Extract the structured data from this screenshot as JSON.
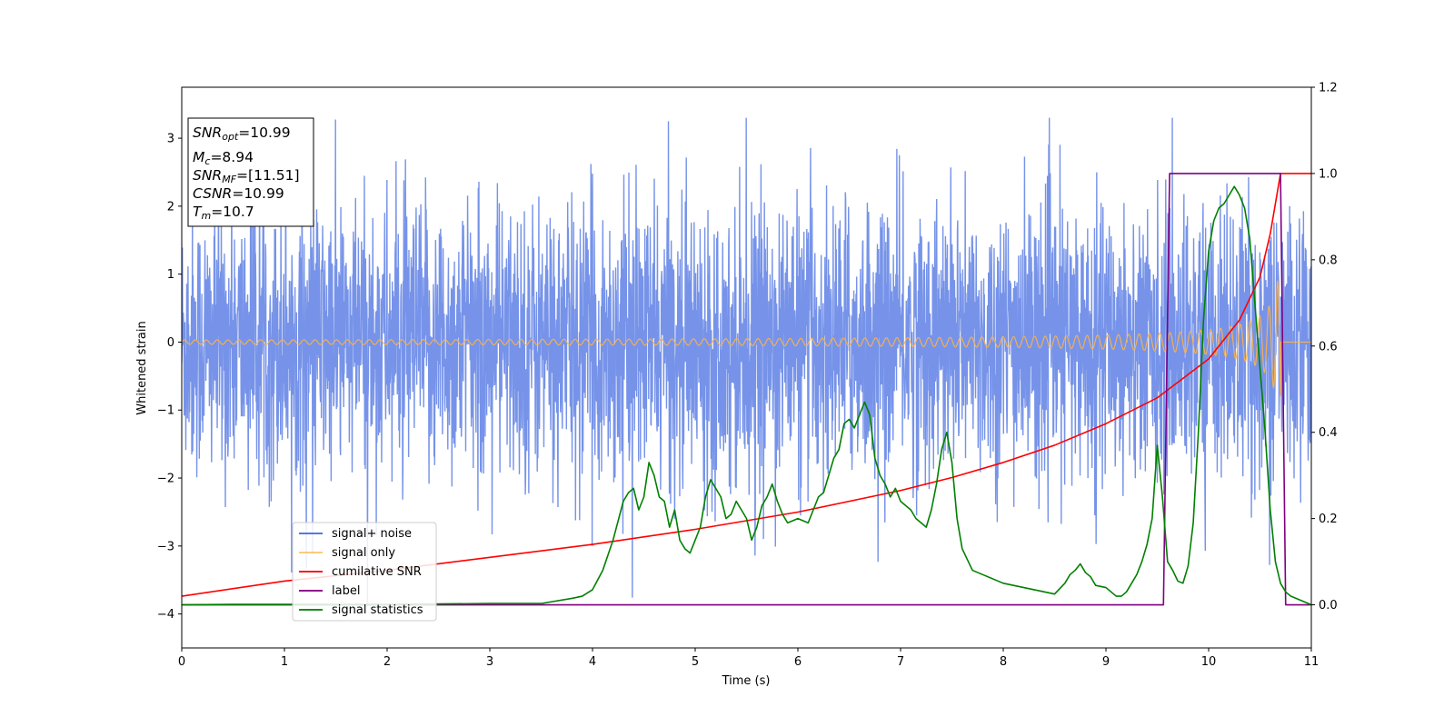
{
  "chart_data": {
    "type": "line",
    "xlabel": "Time (s)",
    "ylabel": "Whitened strain",
    "xlim": [
      0,
      11
    ],
    "ylim": [
      -4.5,
      3.75
    ],
    "y2lim": [
      -0.1,
      1.2
    ],
    "x_ticks": [
      "0",
      "1",
      "2",
      "3",
      "4",
      "5",
      "6",
      "7",
      "8",
      "9",
      "10",
      "11"
    ],
    "y_ticks": [
      "−4",
      "−3",
      "−2",
      "−1",
      "0",
      "1",
      "2",
      "3"
    ],
    "y2_ticks": [
      "0.0",
      "0.2",
      "0.4",
      "0.6",
      "0.8",
      "1.0",
      "1.2"
    ],
    "legend_position": "lower-left",
    "info_box": {
      "position": "upper-left",
      "lines": [
        {
          "name": "SNR",
          "sub": "opt",
          "value": "=10.99"
        },
        {
          "name": "M",
          "sub": "c",
          "value": "=8.94"
        },
        {
          "name": "SNR",
          "sub": "MF",
          "value": "=[11.51]"
        },
        {
          "name": "CSNR",
          "sub": "",
          "value": "=10.99"
        },
        {
          "name": "T",
          "sub": "m",
          "value": "=10.7"
        }
      ]
    },
    "series": [
      {
        "name": "signal+ noise",
        "axis": "left",
        "color": "#4169e1",
        "description": "noisy whitened strain, approx. zero-mean with spread of about ±1.5, peaks near ±3"
      },
      {
        "name": "signal only",
        "axis": "left",
        "color": "#ffb347",
        "description": "chirp, amplitude growing from ~0.03 to ~0.8, ends at 10.7 s"
      },
      {
        "name": "cumilative SNR",
        "axis": "right",
        "x": [
          0,
          1,
          2,
          3,
          4,
          5,
          6,
          7,
          7.5,
          8,
          8.5,
          9,
          9.5,
          10,
          10.3,
          10.5,
          10.6,
          10.7,
          11
        ],
        "values": [
          0.02,
          0.055,
          0.08,
          0.11,
          0.14,
          0.175,
          0.215,
          0.265,
          0.295,
          0.33,
          0.37,
          0.42,
          0.48,
          0.57,
          0.66,
          0.76,
          0.86,
          1.0,
          1.0
        ]
      },
      {
        "name": "label",
        "axis": "right",
        "x": [
          0,
          9.56,
          9.62,
          10.7,
          10.75,
          11
        ],
        "values": [
          0.0,
          0.0,
          1.0,
          1.0,
          0.0,
          0.0
        ]
      },
      {
        "name": "signal statistics",
        "axis": "right",
        "x": [
          0,
          0.5,
          1,
          2,
          3,
          3.5,
          3.8,
          3.9,
          4.0,
          4.1,
          4.2,
          4.3,
          4.35,
          4.4,
          4.45,
          4.5,
          4.55,
          4.6,
          4.65,
          4.7,
          4.75,
          4.8,
          4.85,
          4.9,
          4.95,
          5.0,
          5.05,
          5.1,
          5.15,
          5.2,
          5.25,
          5.3,
          5.35,
          5.4,
          5.45,
          5.5,
          5.55,
          5.6,
          5.65,
          5.7,
          5.75,
          5.8,
          5.85,
          5.9,
          6.0,
          6.1,
          6.15,
          6.2,
          6.25,
          6.3,
          6.35,
          6.4,
          6.45,
          6.5,
          6.55,
          6.6,
          6.65,
          6.7,
          6.75,
          6.8,
          6.85,
          6.9,
          6.95,
          7.0,
          7.05,
          7.1,
          7.15,
          7.2,
          7.25,
          7.3,
          7.35,
          7.4,
          7.45,
          7.5,
          7.55,
          7.6,
          7.7,
          7.8,
          7.9,
          8.0,
          8.1,
          8.2,
          8.3,
          8.4,
          8.5,
          8.6,
          8.65,
          8.7,
          8.75,
          8.8,
          8.85,
          8.9,
          9.0,
          9.05,
          9.1,
          9.15,
          9.2,
          9.25,
          9.3,
          9.35,
          9.4,
          9.45,
          9.5,
          9.55,
          9.6,
          9.65,
          9.7,
          9.75,
          9.8,
          9.85,
          9.9,
          9.95,
          10.0,
          10.05,
          10.1,
          10.15,
          10.2,
          10.25,
          10.3,
          10.35,
          10.4,
          10.45,
          10.5,
          10.55,
          10.6,
          10.65,
          10.7,
          10.75,
          10.8,
          10.9,
          11.0
        ],
        "values": [
          0.0,
          0.001,
          0.001,
          0.001,
          0.003,
          0.003,
          0.015,
          0.02,
          0.035,
          0.08,
          0.15,
          0.24,
          0.26,
          0.27,
          0.22,
          0.25,
          0.33,
          0.3,
          0.25,
          0.24,
          0.18,
          0.22,
          0.15,
          0.13,
          0.12,
          0.15,
          0.18,
          0.25,
          0.29,
          0.27,
          0.25,
          0.2,
          0.21,
          0.24,
          0.22,
          0.2,
          0.15,
          0.18,
          0.23,
          0.25,
          0.28,
          0.24,
          0.21,
          0.19,
          0.2,
          0.19,
          0.22,
          0.25,
          0.26,
          0.3,
          0.34,
          0.36,
          0.42,
          0.43,
          0.41,
          0.44,
          0.47,
          0.44,
          0.34,
          0.3,
          0.28,
          0.25,
          0.27,
          0.24,
          0.23,
          0.22,
          0.2,
          0.19,
          0.18,
          0.22,
          0.28,
          0.36,
          0.4,
          0.33,
          0.2,
          0.13,
          0.08,
          0.07,
          0.06,
          0.05,
          0.045,
          0.04,
          0.035,
          0.03,
          0.025,
          0.05,
          0.07,
          0.08,
          0.095,
          0.075,
          0.065,
          0.045,
          0.04,
          0.03,
          0.02,
          0.02,
          0.03,
          0.05,
          0.07,
          0.1,
          0.14,
          0.2,
          0.37,
          0.25,
          0.1,
          0.08,
          0.055,
          0.05,
          0.09,
          0.19,
          0.4,
          0.66,
          0.82,
          0.89,
          0.92,
          0.93,
          0.95,
          0.97,
          0.95,
          0.92,
          0.85,
          0.7,
          0.55,
          0.4,
          0.22,
          0.1,
          0.05,
          0.03,
          0.02,
          0.01,
          0.0
        ]
      }
    ]
  },
  "legend": {
    "items": [
      {
        "label": "signal+ noise",
        "color": "#4169e1"
      },
      {
        "label": "signal only",
        "color": "#ffb347"
      },
      {
        "label": "cumilative SNR",
        "color": "#ff0000"
      },
      {
        "label": "label",
        "color": "#800080"
      },
      {
        "label": "signal statistics",
        "color": "#008000"
      }
    ]
  }
}
